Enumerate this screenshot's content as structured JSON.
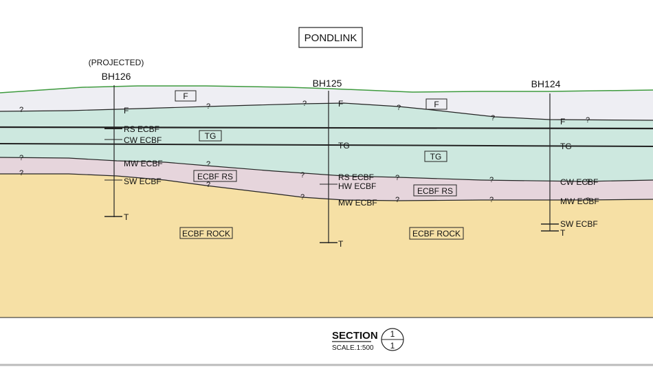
{
  "title": "PONDLINK",
  "colors": {
    "fill": "#eeeef3",
    "tg": "#cde8df",
    "rs": "#e6d5dc",
    "rock": "#f6e0a5",
    "ground": "#3d9a3d",
    "line": "#222222"
  },
  "boreholes": [
    {
      "projected": "(PROJECTED)",
      "name": "BH126",
      "labels": [
        "F",
        "RS ECBF",
        "CW ECBF",
        "MW ECBF",
        "SW ECBF",
        "T"
      ]
    },
    {
      "name": "BH125",
      "labels": [
        "F",
        "TG",
        "RS ECBF",
        "HW ECBF",
        "MW ECBF",
        "T"
      ]
    },
    {
      "name": "BH124",
      "labels": [
        "F",
        "TG",
        "CW ECBF",
        "MW ECBF",
        "SW ECBF",
        "T"
      ]
    }
  ],
  "unit_tags": [
    "F",
    "F",
    "TG",
    "TG",
    "ECBF RS",
    "ECBF RS",
    "ECBF ROCK",
    "ECBF ROCK"
  ],
  "question_mark": "?",
  "footer": {
    "section_label": "SECTION",
    "scale": "SCALE.1:500",
    "bubble_top": "1",
    "bubble_bottom": "1"
  }
}
